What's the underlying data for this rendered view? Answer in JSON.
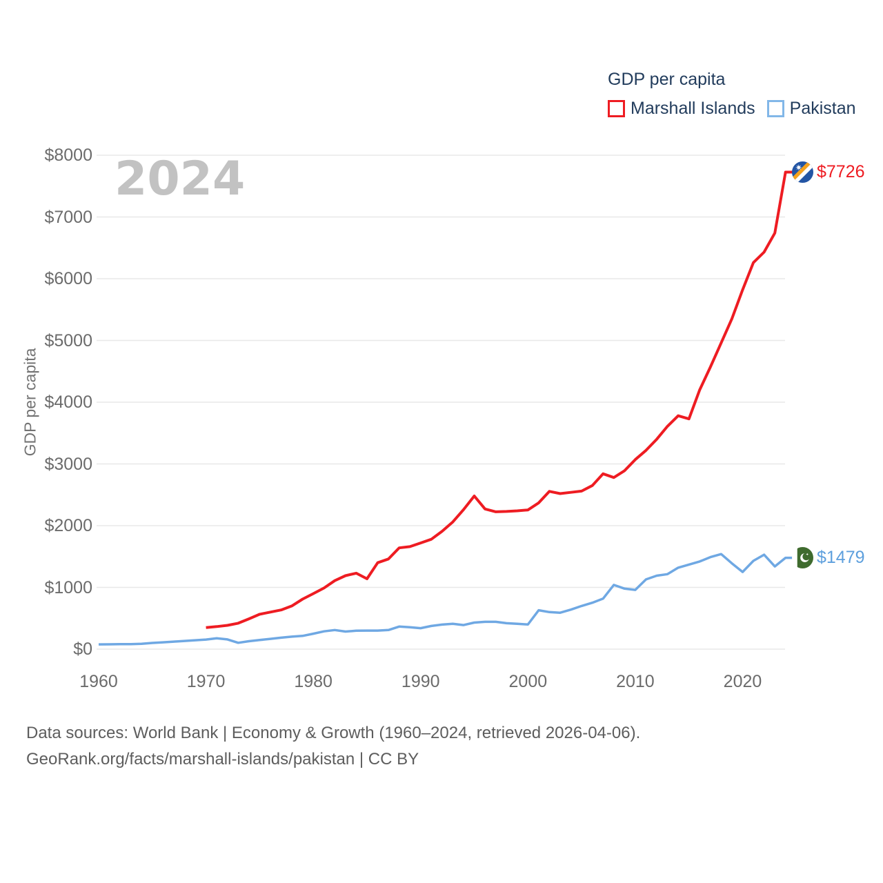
{
  "watermark": "2024",
  "legend": {
    "title": "GDP per capita",
    "series": [
      {
        "label": "Marshall Islands",
        "color": "#ee1c22"
      },
      {
        "label": "Pakistan",
        "color": "#82b7e8"
      }
    ]
  },
  "y_axis": {
    "title": "GDP per capita",
    "ticks": [
      {
        "label": "$0",
        "value": 0
      },
      {
        "label": "$1000",
        "value": 1000
      },
      {
        "label": "$2000",
        "value": 2000
      },
      {
        "label": "$3000",
        "value": 3000
      },
      {
        "label": "$4000",
        "value": 4000
      },
      {
        "label": "$5000",
        "value": 5000
      },
      {
        "label": "$6000",
        "value": 6000
      },
      {
        "label": "$7000",
        "value": 7000
      },
      {
        "label": "$8000",
        "value": 8000
      }
    ]
  },
  "x_axis": {
    "ticks": [
      {
        "label": "1960",
        "value": 1960
      },
      {
        "label": "1970",
        "value": 1970
      },
      {
        "label": "1980",
        "value": 1980
      },
      {
        "label": "1990",
        "value": 1990
      },
      {
        "label": "2000",
        "value": 2000
      },
      {
        "label": "2010",
        "value": 2010
      },
      {
        "label": "2020",
        "value": 2020
      }
    ]
  },
  "chart_data": {
    "type": "line",
    "title": "GDP per capita",
    "xlabel": "",
    "ylabel": "GDP per capita",
    "x_range": [
      1960,
      2024
    ],
    "ylim": [
      0,
      8000
    ],
    "grid": "horizontal",
    "legend_position": "top-right",
    "series": [
      {
        "name": "Marshall Islands",
        "color": "#ee1c22",
        "start_year": 1970,
        "end_label": "$7726",
        "end_value": 7726,
        "values": [
          350,
          365,
          385,
          420,
          490,
          565,
          600,
          635,
          700,
          810,
          900,
          990,
          1110,
          1190,
          1230,
          1140,
          1400,
          1460,
          1640,
          1660,
          1720,
          1780,
          1910,
          2060,
          2260,
          2480,
          2270,
          2225,
          2230,
          2240,
          2255,
          2370,
          2555,
          2520,
          2540,
          2560,
          2650,
          2840,
          2780,
          2890,
          3070,
          3220,
          3400,
          3610,
          3780,
          3730,
          4200,
          4570,
          4960,
          5350,
          5820,
          6260,
          6430,
          6740,
          7726
        ]
      },
      {
        "name": "Pakistan",
        "color": "#6fa8e3",
        "start_year": 1960,
        "end_label": "$1479",
        "end_value": 1479,
        "values": [
          77,
          78,
          80,
          82,
          86,
          100,
          111,
          122,
          133,
          144,
          155,
          175,
          158,
          103,
          129,
          147,
          166,
          185,
          202,
          215,
          250,
          288,
          310,
          285,
          298,
          300,
          300,
          310,
          365,
          355,
          340,
          375,
          398,
          410,
          390,
          430,
          442,
          442,
          420,
          410,
          400,
          630,
          600,
          590,
          640,
          700,
          752,
          818,
          1040,
          980,
          960,
          1130,
          1190,
          1215,
          1320,
          1370,
          1420,
          1490,
          1540,
          1390,
          1250,
          1430,
          1530,
          1340,
          1479
        ]
      }
    ]
  },
  "caption": {
    "line1": "Data sources: World Bank | Economy & Growth (1960–2024, retrieved 2026-04-06).",
    "line2": "GeoRank.org/facts/marshall-islands/pakistan | CC BY"
  }
}
